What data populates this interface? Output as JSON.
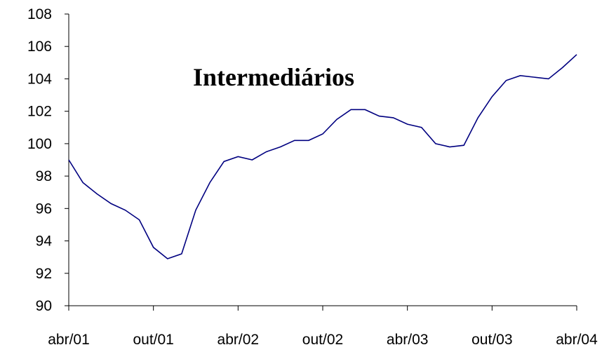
{
  "chart_data": {
    "type": "line",
    "title": "Intermediários",
    "categories": [
      "abr/01",
      null,
      null,
      null,
      null,
      null,
      "out/01",
      null,
      null,
      null,
      null,
      null,
      "abr/02",
      null,
      null,
      null,
      null,
      null,
      "out/02",
      null,
      null,
      null,
      null,
      null,
      "abr/03",
      null,
      null,
      null,
      null,
      null,
      "out/03",
      null,
      null,
      null,
      null,
      null,
      "abr/04"
    ],
    "series": [
      {
        "color": "#000080",
        "values": [
          99.0,
          97.6,
          96.9,
          96.3,
          95.9,
          95.3,
          93.6,
          92.9,
          93.2,
          95.9,
          97.6,
          98.9,
          99.2,
          99.0,
          99.5,
          99.8,
          100.2,
          100.2,
          100.6,
          101.5,
          102.1,
          102.1,
          101.7,
          101.6,
          101.2,
          101.0,
          100.0,
          99.8,
          99.9,
          101.6,
          102.9,
          103.9,
          104.2,
          104.1,
          104.0,
          104.7,
          105.5
        ]
      }
    ],
    "ylim": [
      90,
      108
    ],
    "yticks": [
      90,
      92,
      94,
      96,
      98,
      100,
      102,
      104,
      106,
      108
    ]
  }
}
